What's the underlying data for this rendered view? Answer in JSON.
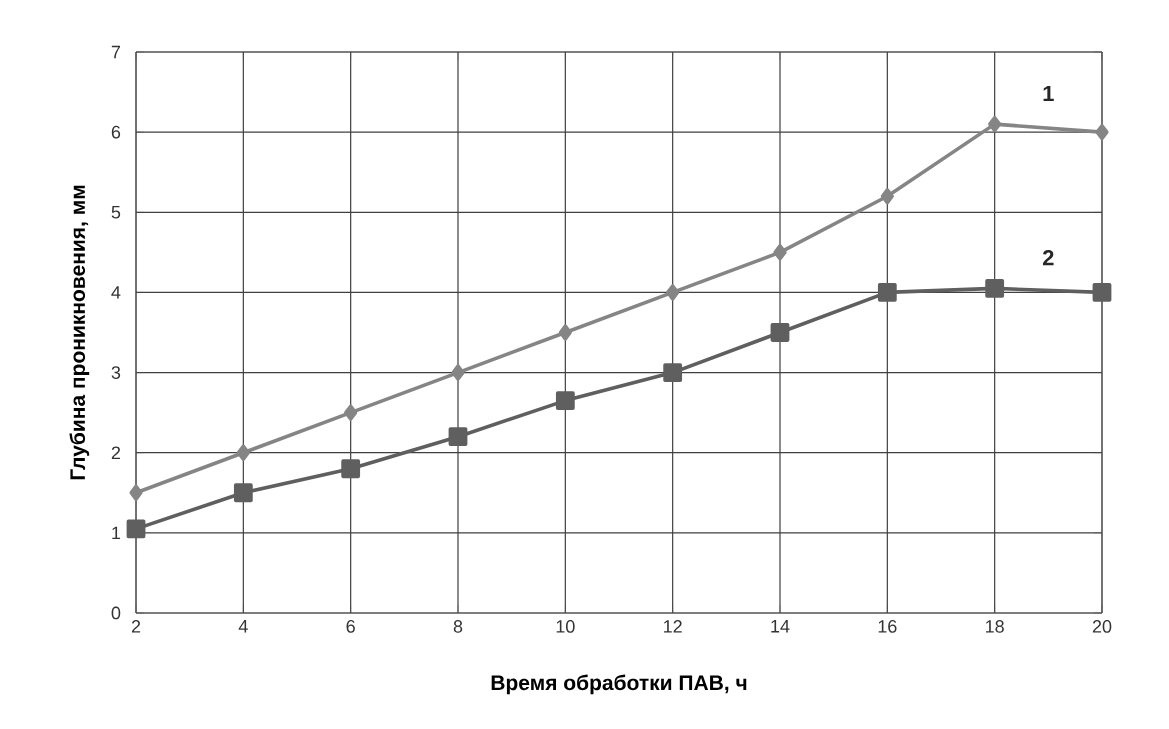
{
  "chart_data": {
    "type": "line",
    "xlabel": "Время обработки  ПАВ, ч",
    "ylabel": "Глубина проникновения, мм",
    "x": [
      2,
      4,
      6,
      8,
      10,
      12,
      14,
      16,
      18,
      20
    ],
    "series": [
      {
        "name": "1",
        "color": "#858585",
        "marker": "diamond",
        "values": [
          1.5,
          2.0,
          2.5,
          3.0,
          3.5,
          4.0,
          4.5,
          5.2,
          6.1,
          6.0
        ]
      },
      {
        "name": "2",
        "color": "#5f5f5f",
        "marker": "square",
        "values": [
          1.05,
          1.5,
          1.8,
          2.2,
          2.65,
          3.0,
          3.5,
          4.0,
          4.05,
          4.0
        ]
      }
    ],
    "xlim": [
      2,
      20
    ],
    "ylim": [
      0,
      7
    ],
    "xticks": [
      2,
      4,
      6,
      8,
      10,
      12,
      14,
      16,
      18,
      20
    ],
    "yticks": [
      0,
      1,
      2,
      3,
      4,
      5,
      6,
      7
    ],
    "grid": true,
    "line_style": "solid"
  }
}
